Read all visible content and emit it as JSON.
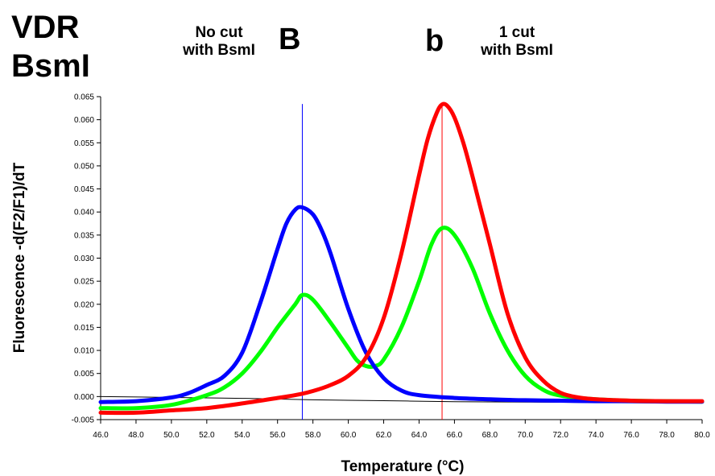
{
  "header": {
    "title_line1": "VDR",
    "title_line2": "BsmI",
    "left_note_line1": "No cut",
    "left_note_line2": "with BsmI",
    "peak_left_letter": "B",
    "peak_right_letter": "b",
    "right_note_line1": "1 cut",
    "right_note_line2": "with BsmI"
  },
  "chart_data": {
    "type": "line",
    "xlabel": "Temperature (°C)",
    "ylabel": "Fluorescence -d(F2/F1)/dT",
    "xlim": [
      46,
      80
    ],
    "ylim": [
      -0.005,
      0.065
    ],
    "x_ticks": [
      "46.0",
      "48.0",
      "50.0",
      "52.0",
      "54.0",
      "56.0",
      "58.0",
      "60.0",
      "62.0",
      "64.0",
      "66.0",
      "68.0",
      "70.0",
      "72.0",
      "74.0",
      "76.0",
      "78.0",
      "80.0"
    ],
    "y_ticks": [
      "-0.005",
      "0.000",
      "0.005",
      "0.010",
      "0.015",
      "0.020",
      "0.025",
      "0.030",
      "0.035",
      "0.040",
      "0.045",
      "0.050",
      "0.055",
      "0.060",
      "0.065"
    ],
    "grid": false,
    "legend": "none",
    "vertical_markers": [
      {
        "x": 57.4,
        "color": "#0000ff"
      },
      {
        "x": 65.3,
        "color": "#ff0000"
      }
    ],
    "series": [
      {
        "color": "#ff0000",
        "x": [
          46,
          48,
          50,
          52,
          54,
          56,
          57,
          58,
          59,
          60,
          61,
          62,
          63,
          64,
          64.5,
          65,
          65.3,
          65.6,
          66,
          66.5,
          67,
          68,
          69,
          70,
          71,
          72,
          73,
          74,
          76,
          78,
          80
        ],
        "y": [
          -0.0035,
          -0.0035,
          -0.003,
          -0.0025,
          -0.0015,
          -0.0003,
          0.0003,
          0.0012,
          0.0025,
          0.0045,
          0.0085,
          0.017,
          0.031,
          0.048,
          0.056,
          0.0615,
          0.0633,
          0.063,
          0.0605,
          0.055,
          0.048,
          0.033,
          0.018,
          0.0085,
          0.0035,
          0.0008,
          -0.0002,
          -0.0006,
          -0.0009,
          -0.001,
          -0.001
        ]
      },
      {
        "color": "#0000ff",
        "x": [
          46,
          48,
          50,
          51,
          52,
          53,
          54,
          55,
          56,
          56.5,
          57,
          57.4,
          58,
          58.5,
          59,
          60,
          61,
          62,
          63,
          64,
          66,
          68,
          70,
          72,
          74,
          76,
          78,
          80
        ],
        "y": [
          -0.0012,
          -0.001,
          -0.0002,
          0.0008,
          0.0025,
          0.0045,
          0.0095,
          0.02,
          0.032,
          0.0375,
          0.0405,
          0.041,
          0.0395,
          0.036,
          0.031,
          0.019,
          0.0095,
          0.004,
          0.0013,
          0.0003,
          -0.0003,
          -0.0006,
          -0.0008,
          -0.0009,
          -0.001,
          -0.001,
          -0.0011,
          -0.0011
        ]
      },
      {
        "color": "#00ff00",
        "x": [
          46,
          48,
          50,
          52,
          53,
          54,
          55,
          56,
          57,
          57.4,
          58,
          59,
          60,
          60.5,
          61,
          61.5,
          62,
          63,
          64,
          64.7,
          65.3,
          66,
          67,
          68,
          69,
          70,
          71,
          72,
          74,
          76,
          78,
          80
        ],
        "y": [
          -0.0025,
          -0.0025,
          -0.0018,
          0.0003,
          0.002,
          0.005,
          0.0095,
          0.015,
          0.02,
          0.022,
          0.021,
          0.016,
          0.0105,
          0.0078,
          0.0066,
          0.0066,
          0.008,
          0.015,
          0.025,
          0.033,
          0.0365,
          0.035,
          0.028,
          0.018,
          0.01,
          0.0045,
          0.0015,
          0.0002,
          -0.0006,
          -0.0009,
          -0.001,
          -0.0011
        ]
      },
      {
        "color": "#000000",
        "x": [
          46,
          50,
          54,
          58,
          62,
          66,
          70,
          74,
          78,
          80
        ],
        "y": [
          0.0,
          -0.0002,
          -0.0004,
          -0.0007,
          -0.0009,
          -0.0011,
          -0.0012,
          -0.0013,
          -0.0014,
          -0.0014
        ]
      }
    ]
  }
}
